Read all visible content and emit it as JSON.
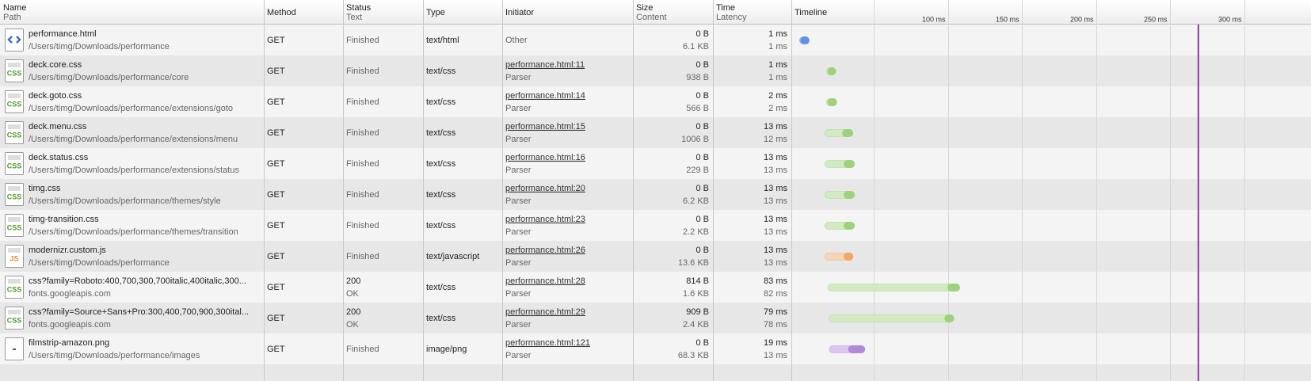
{
  "header": {
    "columns": [
      {
        "title": "Name",
        "subtitle": "Path"
      },
      {
        "title": "Method"
      },
      {
        "title": "Status",
        "subtitle": "Text"
      },
      {
        "title": "Type"
      },
      {
        "title": "Initiator"
      },
      {
        "title": "Size",
        "subtitle": "Content"
      },
      {
        "title": "Time",
        "subtitle": "Latency"
      },
      {
        "title": "Timeline"
      }
    ]
  },
  "timeline": {
    "xlim": [
      -5,
      345
    ],
    "xticks": [
      {
        "value": 50,
        "label": null
      },
      {
        "value": 100,
        "label": "100 ms"
      },
      {
        "value": 150,
        "label": "150 ms"
      },
      {
        "value": 200,
        "label": "200 ms"
      },
      {
        "value": 250,
        "label": "250 ms"
      },
      {
        "value": 300,
        "label": "300 ms"
      }
    ],
    "load_marker": 269,
    "load_marker_color": "#8e3a9e"
  },
  "rows": [
    {
      "name": "performance.html",
      "path": "/Users/timg/Downloads/performance",
      "method": "GET",
      "status": "Finished",
      "type": "text/html",
      "initiator": "Other",
      "size": "0 B",
      "content": "6.1 KB",
      "time": "1 ms",
      "latency": "1 ms",
      "bar": {
        "start": 0,
        "receive": 1,
        "end": 2,
        "colors": [
          "#8fb4ef",
          "#5f93e6"
        ]
      }
    },
    {
      "name": "deck.core.css",
      "path": "/Users/timg/Downloads/performance/core",
      "method": "GET",
      "status": "Finished",
      "type": "text/css",
      "initiator": "performance.html:11",
      "initiator_detail": "Parser",
      "size": "0 B",
      "content": "938 B",
      "time": "1 ms",
      "latency": "1 ms",
      "icon": "CSS",
      "bar": {
        "start": 18,
        "receive": 19,
        "end": 24,
        "colors": [
          "#d2eac0",
          "#9ed27a"
        ]
      }
    },
    {
      "name": "deck.goto.css",
      "path": "/Users/timg/Downloads/performance/extensions/goto",
      "method": "GET",
      "status": "Finished",
      "type": "text/css",
      "initiator": "performance.html:14",
      "initiator_detail": "Parser",
      "size": "0 B",
      "content": "566 B",
      "time": "2 ms",
      "latency": "2 ms",
      "icon": "CSS",
      "bar": {
        "start": 18,
        "receive": 19,
        "end": 25,
        "colors": [
          "#d2eac0",
          "#9ed27a"
        ]
      }
    },
    {
      "name": "deck.menu.css",
      "path": "/Users/timg/Downloads/performance/extensions/menu",
      "method": "GET",
      "status": "Finished",
      "type": "text/css",
      "initiator": "performance.html:15",
      "initiator_detail": "Parser",
      "size": "0 B",
      "content": "1006 B",
      "time": "13 ms",
      "latency": "12 ms",
      "icon": "CSS",
      "bar": {
        "start": 17,
        "receive": 29,
        "end": 36,
        "colors": [
          "#d2eac0",
          "#9ed27a"
        ]
      }
    },
    {
      "name": "deck.status.css",
      "path": "/Users/timg/Downloads/performance/extensions/status",
      "method": "GET",
      "status": "Finished",
      "type": "text/css",
      "initiator": "performance.html:16",
      "initiator_detail": "Parser",
      "size": "0 B",
      "content": "229 B",
      "time": "13 ms",
      "latency": "13 ms",
      "icon": "CSS",
      "bar": {
        "start": 17,
        "receive": 30,
        "end": 37,
        "colors": [
          "#d2eac0",
          "#9ed27a"
        ]
      }
    },
    {
      "name": "timg.css",
      "path": "/Users/timg/Downloads/performance/themes/style",
      "method": "GET",
      "status": "Finished",
      "type": "text/css",
      "initiator": "performance.html:20",
      "initiator_detail": "Parser",
      "size": "0 B",
      "content": "6.2 KB",
      "time": "13 ms",
      "latency": "13 ms",
      "icon": "CSS",
      "bar": {
        "start": 17,
        "receive": 30,
        "end": 37,
        "colors": [
          "#d2eac0",
          "#9ed27a"
        ]
      }
    },
    {
      "name": "timg-transition.css",
      "path": "/Users/timg/Downloads/performance/themes/transition",
      "method": "GET",
      "status": "Finished",
      "type": "text/css",
      "initiator": "performance.html:23",
      "initiator_detail": "Parser",
      "size": "0 B",
      "content": "2.2 KB",
      "time": "13 ms",
      "latency": "13 ms",
      "icon": "CSS",
      "bar": {
        "start": 17,
        "receive": 30,
        "end": 37,
        "colors": [
          "#d2eac0",
          "#9ed27a"
        ]
      }
    },
    {
      "name": "modernizr.custom.js",
      "path": "/Users/timg/Downloads/performance",
      "method": "GET",
      "status": "Finished",
      "type": "text/javascript",
      "initiator": "performance.html:26",
      "initiator_detail": "Parser",
      "size": "0 B",
      "content": "13.6 KB",
      "time": "13 ms",
      "latency": "13 ms",
      "icon": "JS",
      "bar": {
        "start": 17,
        "receive": 30,
        "end": 36,
        "colors": [
          "#f6d4b4",
          "#f0a866"
        ]
      }
    },
    {
      "name": "css?family=Roboto:400,700,300,700italic,400italic,300...",
      "path": "fonts.googleapis.com",
      "method": "GET",
      "status": "200",
      "status_text": "OK",
      "type": "text/css",
      "initiator": "performance.html:28",
      "initiator_detail": "Parser",
      "size": "814 B",
      "content": "1.6 KB",
      "time": "83 ms",
      "latency": "82 ms",
      "icon": "CSS",
      "bar": {
        "start": 19,
        "receive": 100,
        "end": 108,
        "colors": [
          "#d2eac0",
          "#9ed27a"
        ]
      }
    },
    {
      "name": "css?family=Source+Sans+Pro:300,400,700,900,300ital...",
      "path": "fonts.googleapis.com",
      "method": "GET",
      "status": "200",
      "status_text": "OK",
      "type": "text/css",
      "initiator": "performance.html:29",
      "initiator_detail": "Parser",
      "size": "909 B",
      "content": "2.4 KB",
      "time": "79 ms",
      "latency": "78 ms",
      "icon": "CSS",
      "bar": {
        "start": 20,
        "receive": 98,
        "end": 104,
        "colors": [
          "#d2eac0",
          "#9ed27a"
        ]
      }
    },
    {
      "name": "filmstrip-amazon.png",
      "path": "/Users/timg/Downloads/performance/images",
      "method": "GET",
      "status": "Finished",
      "type": "image/png",
      "initiator": "performance.html:121",
      "initiator_detail": "Parser",
      "size": "0 B",
      "content": "68.3 KB",
      "time": "19 ms",
      "latency": "13 ms",
      "bar": {
        "start": 20,
        "receive": 33,
        "end": 44,
        "colors": [
          "#dcc6ef",
          "#b48ad8"
        ]
      }
    }
  ]
}
